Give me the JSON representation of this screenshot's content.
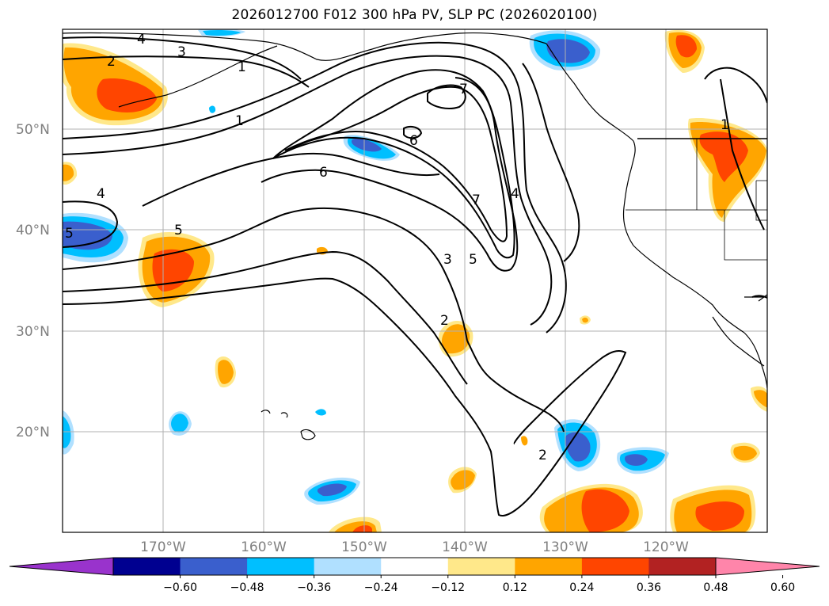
{
  "title": "2026012700 F012 300 hPa PV, SLP PC (2026020100)",
  "lat_labels": [
    "50°N",
    "40°N",
    "30°N",
    "20°N"
  ],
  "lon_labels": [
    "170°W",
    "160°W",
    "150°W",
    "140°W",
    "130°W",
    "120°W"
  ],
  "colorbar": {
    "tick_labels": [
      "−0.60",
      "−0.48",
      "−0.36",
      "−0.24",
      "−0.12",
      "0.12",
      "0.24",
      "0.36",
      "0.48",
      "0.60"
    ],
    "colors": [
      "#9933cc",
      "#000090",
      "#3a5fcd",
      "#00bfff",
      "#b0e0ff",
      "#ffffff",
      "#ffe88a",
      "#ffa500",
      "#ff4500",
      "#b22222",
      "#ff85aa"
    ]
  },
  "contour_labels": [
    "4",
    "3",
    "2",
    "1",
    "1",
    "7",
    "6",
    "6",
    "4",
    "7",
    "4",
    "5",
    "5",
    "3",
    "5",
    "2",
    "2",
    "1"
  ]
}
